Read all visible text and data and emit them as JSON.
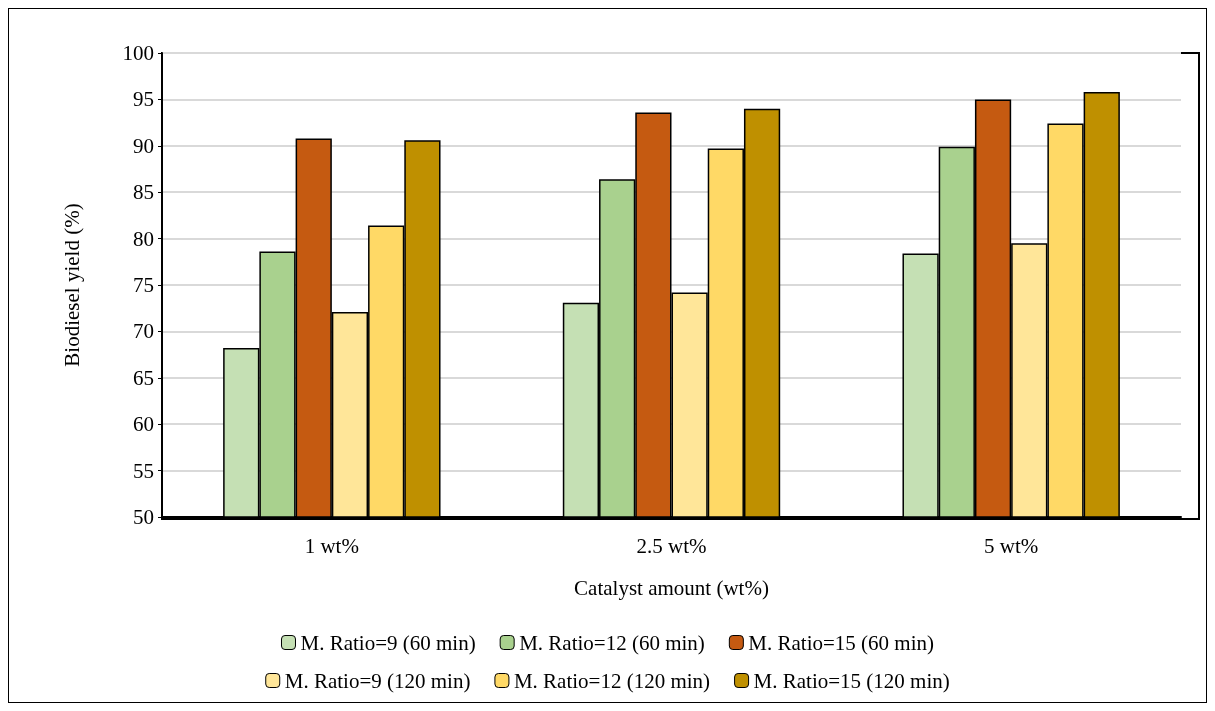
{
  "chart_data": {
    "type": "bar",
    "xlabel": "Catalyst amount (wt%)",
    "ylabel": "Biodiesel yield (%)",
    "categories": [
      "1 wt%",
      "2.5 wt%",
      "5 wt%"
    ],
    "series": [
      {
        "name": "M. Ratio=9 (60 min)",
        "color": "#c5e0b4",
        "values": [
          68.2,
          73.1,
          78.4
        ]
      },
      {
        "name": "M. Ratio=12 (60 min)",
        "color": "#a9d18e",
        "values": [
          78.6,
          86.4,
          89.9
        ]
      },
      {
        "name": "M. Ratio=15 (60 min)",
        "color": "#c55a11",
        "values": [
          90.8,
          93.6,
          95.0
        ]
      },
      {
        "name": "M. Ratio=9 (120 min)",
        "color": "#ffe699",
        "values": [
          72.1,
          74.2,
          79.5
        ]
      },
      {
        "name": "M. Ratio=12 (120 min)",
        "color": "#ffd966",
        "values": [
          81.4,
          89.7,
          92.4
        ]
      },
      {
        "name": "M. Ratio=15 (120 min)",
        "color": "#bf9000",
        "values": [
          90.6,
          94.0,
          95.8
        ]
      }
    ],
    "ylim": [
      50,
      100
    ],
    "yticks": [
      50,
      55,
      60,
      65,
      70,
      75,
      80,
      85,
      90,
      95,
      100
    ],
    "grid": "y",
    "legend": "bottom"
  }
}
